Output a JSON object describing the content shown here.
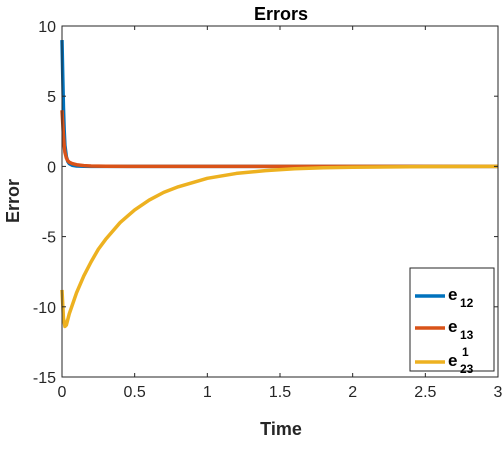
{
  "chart_data": {
    "type": "line",
    "title": "Errors",
    "xlabel": "Time",
    "ylabel": "Error",
    "xlim": [
      0,
      3
    ],
    "ylim": [
      -15,
      10
    ],
    "xticks": [
      0,
      0.5,
      1,
      1.5,
      2,
      2.5,
      3
    ],
    "xtick_labels": [
      "0",
      "0.5",
      "1",
      "1.5",
      "2",
      "2.5",
      "3"
    ],
    "yticks": [
      -15,
      -10,
      -5,
      0,
      5,
      10
    ],
    "ytick_labels": [
      "-15",
      "-10",
      "-5",
      "0",
      "5",
      "10"
    ],
    "grid": false,
    "legend_position": "bottom-right",
    "series": [
      {
        "name": "e12",
        "label_base": "e",
        "label_sub": "12",
        "label_sup": "",
        "color": "#0072BD",
        "x": [
          0,
          0.005,
          0.01,
          0.015,
          0.02,
          0.03,
          0.04,
          0.05,
          0.07,
          0.1,
          0.15,
          0.2,
          0.3,
          0.5,
          1,
          2,
          3
        ],
        "y": [
          9,
          6.5,
          4.2,
          2.6,
          1.5,
          0.7,
          0.35,
          0.2,
          0.08,
          0.03,
          0.01,
          0,
          0,
          0,
          0,
          0,
          0
        ]
      },
      {
        "name": "e13",
        "label_base": "e",
        "label_sub": "13",
        "label_sup": "",
        "color": "#D95319",
        "x": [
          0,
          0.005,
          0.01,
          0.015,
          0.02,
          0.03,
          0.04,
          0.05,
          0.07,
          0.1,
          0.15,
          0.2,
          0.3,
          0.5,
          1,
          2,
          3
        ],
        "y": [
          4,
          3.1,
          2.2,
          1.5,
          1.0,
          0.6,
          0.4,
          0.3,
          0.2,
          0.12,
          0.06,
          0.03,
          0.01,
          0,
          0,
          0,
          0
        ]
      },
      {
        "name": "e23^1",
        "label_base": "e",
        "label_sub": "23",
        "label_sup": "1",
        "color": "#EDB120",
        "x": [
          0,
          0.01,
          0.02,
          0.03,
          0.04,
          0.05,
          0.07,
          0.1,
          0.15,
          0.2,
          0.25,
          0.3,
          0.4,
          0.5,
          0.6,
          0.7,
          0.8,
          1.0,
          1.2,
          1.4,
          1.6,
          1.8,
          2.0,
          2.5,
          3.0
        ],
        "y": [
          -8.8,
          -10.8,
          -11.4,
          -11.3,
          -10.9,
          -10.5,
          -9.9,
          -9.0,
          -7.8,
          -6.8,
          -5.9,
          -5.2,
          -4.0,
          -3.1,
          -2.4,
          -1.85,
          -1.45,
          -0.85,
          -0.5,
          -0.3,
          -0.17,
          -0.1,
          -0.06,
          -0.02,
          0
        ]
      }
    ]
  }
}
